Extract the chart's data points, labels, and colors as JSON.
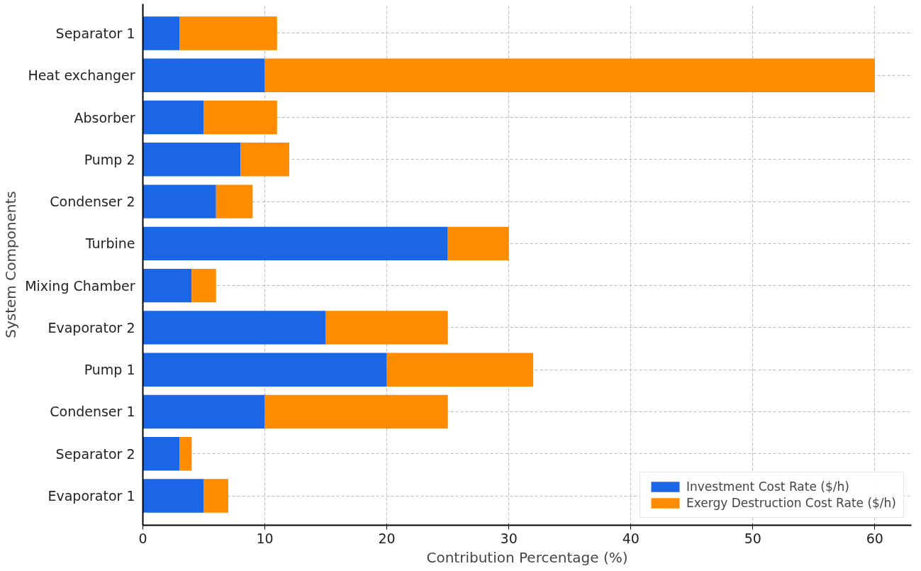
{
  "chart_data": {
    "type": "bar",
    "orientation": "horizontal",
    "stacked": true,
    "xlabel": "Contribution Percentage (%)",
    "ylabel": "System Components",
    "categories": [
      "Separator 1",
      "Heat exchanger",
      "Absorber",
      "Pump 2",
      "Condenser 2",
      "Turbine",
      "Mixing Chamber",
      "Evaporator 2",
      "Pump 1",
      "Condenser 1",
      "Separator 2",
      "Evaporator 1"
    ],
    "series": [
      {
        "name": "Investment Cost Rate ($/h)",
        "color": "#1a66e6",
        "values": [
          3,
          10,
          5,
          8,
          6,
          25,
          4,
          15,
          20,
          10,
          3,
          5
        ]
      },
      {
        "name": "Exergy Destruction Cost Rate ($/h)",
        "color": "#ff8c00",
        "values": [
          8,
          50,
          6,
          4,
          3,
          5,
          2,
          10,
          12,
          15,
          1,
          2
        ]
      }
    ],
    "xlim": [
      0,
      63
    ],
    "xticks": [
      0,
      10,
      20,
      30,
      40,
      50,
      60
    ],
    "grid": true,
    "legend": "bottom right"
  }
}
